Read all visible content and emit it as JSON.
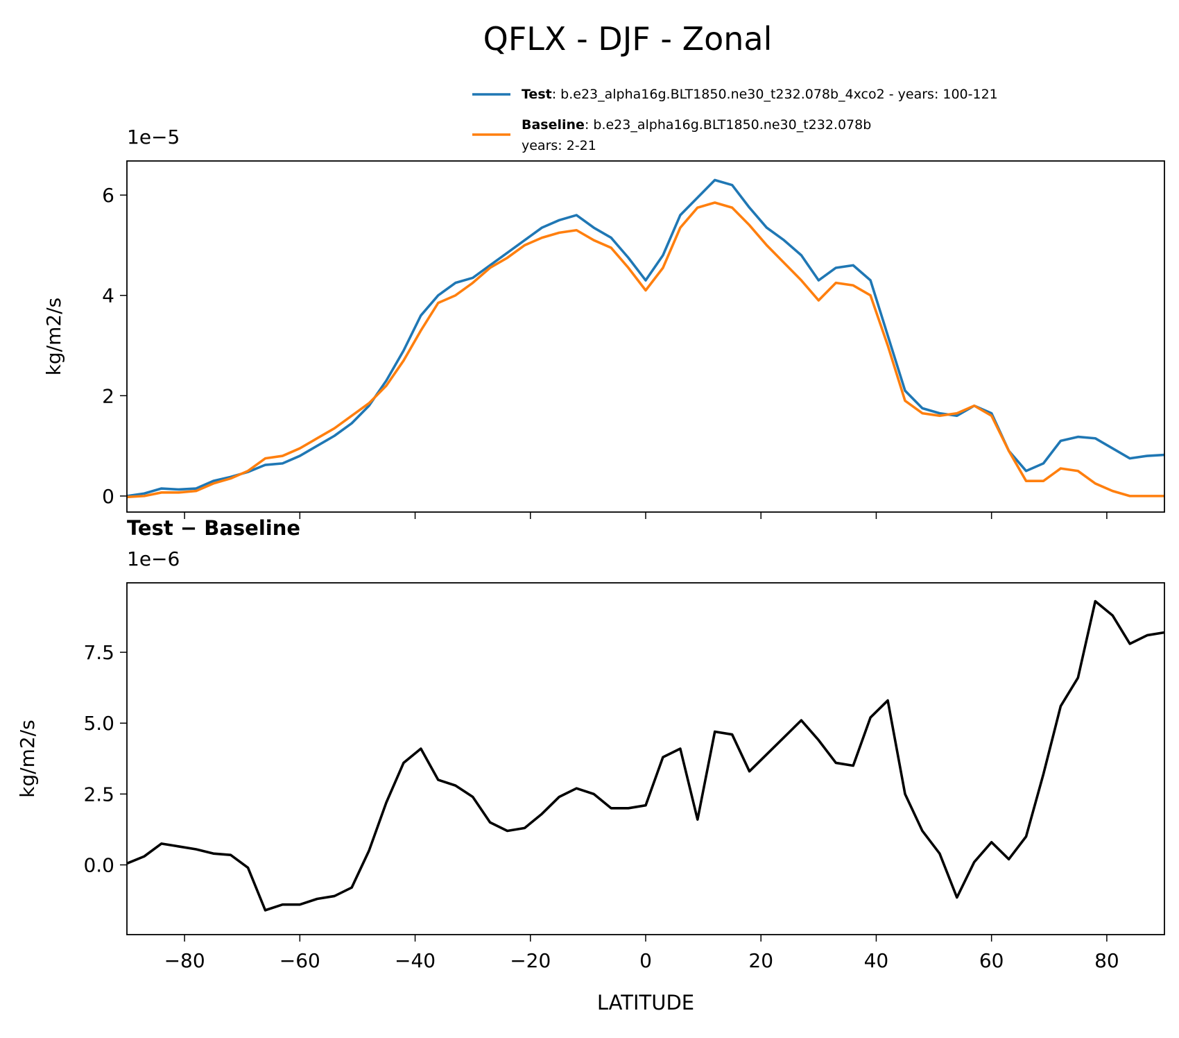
{
  "title": "QFLX - DJF - Zonal",
  "chart_data": [
    {
      "type": "line",
      "ylabel": "kg/m2/s",
      "y_offset_label": "1e−5",
      "x": [
        -90,
        -87,
        -84,
        -81,
        -78,
        -75,
        -72,
        -69,
        -66,
        -63,
        -60,
        -57,
        -54,
        -51,
        -48,
        -45,
        -42,
        -39,
        -36,
        -33,
        -30,
        -27,
        -24,
        -21,
        -18,
        -15,
        -12,
        -9,
        -6,
        -3,
        0,
        3,
        6,
        9,
        12,
        15,
        18,
        21,
        24,
        27,
        30,
        33,
        36,
        39,
        42,
        45,
        48,
        51,
        54,
        57,
        60,
        63,
        66,
        69,
        72,
        75,
        78,
        81,
        84,
        87,
        90
      ],
      "series": [
        {
          "name": "Test",
          "description": [
            ": b.e23_alpha16g.BLT1850.ne30_t232.078b_4xco2 - years: 100-121"
          ],
          "color": "#1f77b4",
          "values": [
            0.0,
            0.05,
            0.15,
            0.13,
            0.15,
            0.3,
            0.38,
            0.48,
            0.62,
            0.65,
            0.8,
            1.0,
            1.2,
            1.45,
            1.8,
            2.3,
            2.9,
            3.6,
            4.0,
            4.25,
            4.35,
            4.6,
            4.85,
            5.1,
            5.35,
            5.5,
            5.6,
            5.35,
            5.15,
            4.75,
            4.3,
            4.8,
            5.6,
            5.95,
            6.3,
            6.2,
            5.75,
            5.35,
            5.1,
            4.8,
            4.3,
            4.55,
            4.6,
            4.3,
            3.2,
            2.1,
            1.75,
            1.65,
            1.6,
            1.8,
            1.65,
            0.9,
            0.5,
            0.65,
            1.1,
            1.18,
            1.15,
            0.95,
            0.75,
            0.8,
            0.82
          ]
        },
        {
          "name": "Baseline",
          "description": [
            ": b.e23_alpha16g.BLT1850.ne30_t232.078b",
            "years: 2-21"
          ],
          "color": "#ff7f0e",
          "values": [
            -0.02,
            0.0,
            0.07,
            0.07,
            0.1,
            0.25,
            0.35,
            0.5,
            0.75,
            0.8,
            0.95,
            1.15,
            1.35,
            1.6,
            1.85,
            2.2,
            2.7,
            3.3,
            3.85,
            4.0,
            4.25,
            4.55,
            4.75,
            5.0,
            5.15,
            5.25,
            5.3,
            5.1,
            4.95,
            4.55,
            4.1,
            4.55,
            5.35,
            5.75,
            5.85,
            5.75,
            5.4,
            5.0,
            4.65,
            4.3,
            3.9,
            4.25,
            4.2,
            4.0,
            3.0,
            1.9,
            1.65,
            1.6,
            1.65,
            1.8,
            1.6,
            0.9,
            0.3,
            0.3,
            0.55,
            0.5,
            0.25,
            0.1,
            0.0,
            0.0,
            0.0
          ]
        }
      ],
      "xlim": [
        -90,
        90
      ],
      "xticks": [
        -80,
        -60,
        -40,
        -20,
        0,
        20,
        40,
        60,
        80
      ],
      "ylim": [
        -0.32,
        6.68
      ],
      "yticks": [
        0,
        2,
        4,
        6
      ]
    },
    {
      "type": "line",
      "title": "Test − Baseline",
      "xlabel": "LATITUDE",
      "ylabel": "kg/m2/s",
      "y_offset_label": "1e−6",
      "x": [
        -90,
        -87,
        -84,
        -81,
        -78,
        -75,
        -72,
        -69,
        -66,
        -63,
        -60,
        -57,
        -54,
        -51,
        -48,
        -45,
        -42,
        -39,
        -36,
        -33,
        -30,
        -27,
        -24,
        -21,
        -18,
        -15,
        -12,
        -9,
        -6,
        -3,
        0,
        3,
        6,
        9,
        12,
        15,
        18,
        21,
        24,
        27,
        30,
        33,
        36,
        39,
        42,
        45,
        48,
        51,
        54,
        57,
        60,
        63,
        66,
        69,
        72,
        75,
        78,
        81,
        84,
        87,
        90
      ],
      "series": [
        {
          "color": "#000000",
          "values": [
            0.05,
            0.3,
            0.75,
            0.65,
            0.55,
            0.4,
            0.35,
            -0.1,
            -1.6,
            -1.4,
            -1.4,
            -1.2,
            -1.1,
            -0.8,
            0.5,
            2.2,
            3.6,
            4.1,
            3.0,
            2.8,
            2.4,
            1.5,
            1.2,
            1.3,
            1.8,
            2.4,
            2.7,
            2.5,
            2.0,
            2.0,
            2.1,
            3.8,
            4.1,
            1.6,
            4.7,
            4.6,
            3.3,
            3.9,
            4.5,
            5.1,
            4.4,
            3.6,
            3.5,
            5.2,
            5.8,
            2.5,
            1.2,
            0.4,
            -1.15,
            0.1,
            0.8,
            0.2,
            1.0,
            3.2,
            5.6,
            6.6,
            9.3,
            8.8,
            7.8,
            8.1,
            8.2
          ]
        }
      ],
      "xlim": [
        -90,
        90
      ],
      "xticks": [
        {
          "value": -80,
          "label": "−80"
        },
        {
          "value": -60,
          "label": "−60"
        },
        {
          "value": -40,
          "label": "−40"
        },
        {
          "value": -20,
          "label": "−20"
        },
        0,
        20,
        40,
        60,
        80
      ],
      "ylim": [
        -2.46,
        9.95
      ],
      "yticks": [
        {
          "value": 0,
          "label": "0.0"
        },
        2.5,
        {
          "value": 5,
          "label": "5.0"
        },
        7.5
      ]
    }
  ]
}
